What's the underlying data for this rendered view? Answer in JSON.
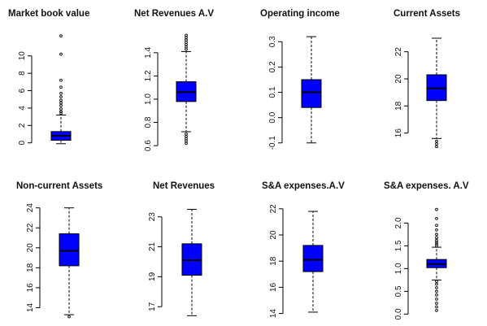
{
  "chart_data": [
    {
      "type": "box",
      "title": "Market book value",
      "ylim": [
        -0.4,
        12.5
      ],
      "yticks": [
        0,
        2,
        4,
        6,
        8,
        10
      ],
      "box": {
        "whisker_low": -0.1,
        "q1": 0.3,
        "median": 0.8,
        "q3": 1.3,
        "whisker_high": 3.2
      },
      "outliers": [
        12.3,
        10.2,
        7.2,
        6.4,
        5.7,
        5.3,
        4.9,
        4.6,
        4.3,
        3.9,
        3.6,
        3.4
      ]
    },
    {
      "type": "box",
      "title": "Net Revenues A.V",
      "ylim": [
        0.58,
        1.56
      ],
      "yticks": [
        0.6,
        0.8,
        1.0,
        1.2,
        1.4
      ],
      "box": {
        "whisker_low": 0.72,
        "q1": 0.98,
        "median": 1.06,
        "q3": 1.15,
        "whisker_high": 1.41
      },
      "outliers": [
        1.55,
        1.53,
        1.51,
        1.49,
        1.47,
        1.45,
        1.43,
        0.7,
        0.68,
        0.66,
        0.64,
        0.62
      ]
    },
    {
      "type": "box",
      "title": "Operating income",
      "ylim": [
        -0.12,
        0.33
      ],
      "yticks": [
        -0.1,
        0.0,
        0.1,
        0.2,
        0.3
      ],
      "box": {
        "whisker_low": -0.1,
        "q1": 0.04,
        "median": 0.1,
        "q3": 0.15,
        "whisker_high": 0.32
      },
      "outliers": []
    },
    {
      "type": "box",
      "title": "Current Assets",
      "ylim": [
        14.9,
        23.3
      ],
      "yticks": [
        16,
        18,
        20,
        22
      ],
      "box": {
        "whisker_low": 15.6,
        "q1": 18.4,
        "median": 19.3,
        "q3": 20.3,
        "whisker_high": 23.0
      },
      "outliers": [
        15.4,
        15.2,
        15.0
      ]
    },
    {
      "type": "box",
      "title": "Non-current Assets",
      "ylim": [
        12.9,
        24.3
      ],
      "yticks": [
        14,
        16,
        18,
        20,
        22,
        24
      ],
      "box": {
        "whisker_low": 13.3,
        "q1": 18.2,
        "median": 19.7,
        "q3": 21.4,
        "whisker_high": 24.0
      },
      "outliers": [
        13.1
      ]
    },
    {
      "type": "box",
      "title": "Net Revenues",
      "ylim": [
        16.2,
        23.8
      ],
      "yticks": [
        17,
        19,
        21,
        23
      ],
      "box": {
        "whisker_low": 16.4,
        "q1": 19.1,
        "median": 20.1,
        "q3": 21.2,
        "whisker_high": 23.5
      },
      "outliers": []
    },
    {
      "type": "box",
      "title": "S&A expenses.A.V",
      "ylim": [
        13.6,
        22.3
      ],
      "yticks": [
        14,
        16,
        18,
        20,
        22
      ],
      "box": {
        "whisker_low": 14.1,
        "q1": 17.2,
        "median": 18.1,
        "q3": 19.2,
        "whisker_high": 21.8
      },
      "outliers": []
    },
    {
      "type": "box",
      "title": "S&A expenses. A.V",
      "ylim": [
        -0.1,
        2.4
      ],
      "yticks": [
        0.0,
        0.5,
        1.0,
        1.5,
        2.0
      ],
      "box": {
        "whisker_low": 0.75,
        "q1": 1.02,
        "median": 1.1,
        "q3": 1.2,
        "whisker_high": 1.47
      },
      "outliers": [
        2.3,
        2.1,
        1.95,
        1.85,
        1.75,
        1.68,
        1.62,
        1.58,
        1.54,
        1.5,
        0.72,
        0.66,
        0.58,
        0.5,
        0.42,
        0.33,
        0.24,
        0.16,
        0.08
      ]
    }
  ],
  "colors": {
    "box_fill": "#0000ff",
    "ink": "#000000"
  }
}
